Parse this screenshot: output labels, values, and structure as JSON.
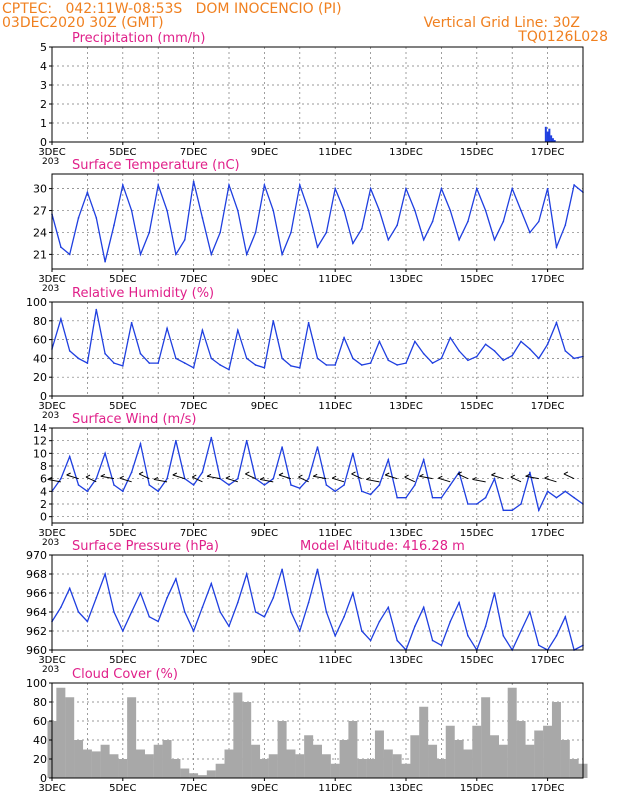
{
  "header": {
    "line1": "CPTEC:   042:11W-08:53S   DOM INOCENCIO (PI)",
    "line2": "03DEC2020 30Z (GMT)",
    "grid_note": "Vertical Grid Line: 30Z",
    "code": "TQ0126L028",
    "color": "#f08020"
  },
  "colors": {
    "title": "#e0208a",
    "line": "#1f3fe0",
    "cloud": "#a8a8a8",
    "frame": "#000000"
  },
  "x_axis": {
    "labels": [
      "3DEC",
      "5DEC",
      "7DEC",
      "9DEC",
      "11DEC",
      "13DEC",
      "15DEC",
      "17DEC"
    ],
    "overlap_label": "203"
  },
  "chart_data": [
    {
      "type": "bar",
      "title": "Precipitation (mm/h)",
      "ylim": [
        0,
        5
      ],
      "yticks": [
        0,
        1,
        2,
        3,
        4,
        5
      ],
      "x": [
        16.95,
        17.0,
        17.05,
        17.1,
        17.15,
        17.2
      ],
      "values": [
        0.8,
        0.55,
        0.7,
        0.35,
        0.2,
        0.1
      ]
    },
    {
      "type": "line",
      "title": "Surface Temperature (nC)",
      "ylim": [
        19,
        32
      ],
      "yticks": [
        21,
        24,
        27,
        30
      ],
      "x": [
        3.0,
        3.25,
        3.5,
        3.75,
        4.0,
        4.25,
        4.5,
        4.75,
        5.0,
        5.25,
        5.5,
        5.75,
        6.0,
        6.25,
        6.5,
        6.75,
        7.0,
        7.25,
        7.5,
        7.75,
        8.0,
        8.25,
        8.5,
        8.75,
        9.0,
        9.25,
        9.5,
        9.75,
        10.0,
        10.25,
        10.5,
        10.75,
        11.0,
        11.25,
        11.5,
        11.75,
        12.0,
        12.25,
        12.5,
        12.75,
        13.0,
        13.25,
        13.5,
        13.75,
        14.0,
        14.25,
        14.5,
        14.75,
        15.0,
        15.25,
        15.5,
        15.75,
        16.0,
        16.25,
        16.5,
        16.75,
        17.0,
        17.25,
        17.5,
        17.75,
        18.0
      ],
      "y": [
        26.5,
        22,
        21,
        26,
        29.5,
        26,
        20,
        25,
        30.5,
        27,
        21,
        24,
        30.5,
        27,
        21,
        23,
        31,
        26,
        21,
        24,
        30.5,
        27,
        21,
        24,
        30.5,
        27,
        21,
        24,
        30.5,
        27,
        22,
        24,
        30,
        27,
        22.5,
        24.5,
        30,
        27,
        23,
        25,
        30,
        27,
        23,
        25.5,
        30,
        27,
        23,
        25.5,
        30,
        27,
        23,
        25.5,
        30,
        27,
        24,
        25.5,
        30,
        22,
        25,
        30.5,
        29.5
      ]
    },
    {
      "type": "line",
      "title": "Relative Humidity (%)",
      "ylim": [
        0,
        100
      ],
      "yticks": [
        0,
        20,
        40,
        60,
        80,
        100
      ],
      "x": [
        3.0,
        3.25,
        3.5,
        3.75,
        4.0,
        4.25,
        4.5,
        4.75,
        5.0,
        5.25,
        5.5,
        5.75,
        6.0,
        6.25,
        6.5,
        6.75,
        7.0,
        7.25,
        7.5,
        7.75,
        8.0,
        8.25,
        8.5,
        8.75,
        9.0,
        9.25,
        9.5,
        9.75,
        10.0,
        10.25,
        10.5,
        10.75,
        11.0,
        11.25,
        11.5,
        11.75,
        12.0,
        12.25,
        12.5,
        12.75,
        13.0,
        13.25,
        13.5,
        13.75,
        14.0,
        14.25,
        14.5,
        14.75,
        15.0,
        15.25,
        15.5,
        15.75,
        16.0,
        16.25,
        16.5,
        16.75,
        17.0,
        17.25,
        17.5,
        17.75,
        18.0
      ],
      "y": [
        50,
        82,
        48,
        40,
        35,
        92,
        45,
        35,
        32,
        78,
        45,
        35,
        35,
        72,
        40,
        35,
        30,
        70,
        40,
        33,
        28,
        70,
        40,
        33,
        30,
        80,
        40,
        32,
        30,
        78,
        40,
        33,
        33,
        62,
        40,
        33,
        35,
        58,
        38,
        33,
        35,
        58,
        45,
        35,
        40,
        62,
        48,
        38,
        42,
        55,
        48,
        38,
        43,
        58,
        50,
        40,
        55,
        78,
        48,
        40,
        42
      ]
    },
    {
      "type": "line",
      "title": "Surface Wind (m/s)",
      "ylim": [
        -1,
        14
      ],
      "yticks": [
        0,
        2,
        4,
        6,
        8,
        10,
        12,
        14
      ],
      "x": [
        3.0,
        3.25,
        3.5,
        3.75,
        4.0,
        4.25,
        4.5,
        4.75,
        5.0,
        5.25,
        5.5,
        5.75,
        6.0,
        6.25,
        6.5,
        6.75,
        7.0,
        7.25,
        7.5,
        7.75,
        8.0,
        8.25,
        8.5,
        8.75,
        9.0,
        9.25,
        9.5,
        9.75,
        10.0,
        10.25,
        10.5,
        10.75,
        11.0,
        11.25,
        11.5,
        11.75,
        12.0,
        12.25,
        12.5,
        12.75,
        13.0,
        13.25,
        13.5,
        13.75,
        14.0,
        14.25,
        14.5,
        14.75,
        15.0,
        15.25,
        15.5,
        15.75,
        16.0,
        16.25,
        16.5,
        16.75,
        17.0,
        17.25,
        17.5,
        17.75,
        18.0
      ],
      "y": [
        4,
        6,
        9.5,
        5,
        4,
        6,
        10,
        5,
        4,
        7,
        11.5,
        5,
        4,
        6,
        12,
        6,
        5,
        7,
        12.5,
        6,
        5,
        6,
        12,
        6,
        5,
        6,
        11,
        5,
        4.5,
        6,
        11,
        5,
        4,
        5,
        10,
        4,
        3.5,
        5,
        9,
        3,
        3,
        5,
        9,
        3,
        3,
        5,
        7,
        2,
        2,
        3,
        6,
        1,
        1,
        2,
        7,
        1,
        4,
        3,
        4,
        3,
        2
      ]
    },
    {
      "type": "line",
      "title": "Surface Pressure (hPa)",
      "annotation": "Model Altitude: 416.28 m",
      "ylim": [
        960,
        970
      ],
      "yticks": [
        960,
        962,
        964,
        966,
        968,
        970
      ],
      "x": [
        3.0,
        3.25,
        3.5,
        3.75,
        4.0,
        4.25,
        4.5,
        4.75,
        5.0,
        5.25,
        5.5,
        5.75,
        6.0,
        6.25,
        6.5,
        6.75,
        7.0,
        7.25,
        7.5,
        7.75,
        8.0,
        8.25,
        8.5,
        8.75,
        9.0,
        9.25,
        9.5,
        9.75,
        10.0,
        10.25,
        10.5,
        10.75,
        11.0,
        11.25,
        11.5,
        11.75,
        12.0,
        12.25,
        12.5,
        12.75,
        13.0,
        13.25,
        13.5,
        13.75,
        14.0,
        14.25,
        14.5,
        14.75,
        15.0,
        15.25,
        15.5,
        15.75,
        16.0,
        16.25,
        16.5,
        16.75,
        17.0,
        17.25,
        17.5,
        17.75,
        18.0
      ],
      "y": [
        963,
        964.5,
        966.5,
        964,
        963,
        965.5,
        968,
        964,
        962,
        964,
        966,
        963.5,
        963,
        965.5,
        967.5,
        964,
        962,
        964.5,
        967,
        964,
        962.5,
        965,
        968,
        964,
        963.5,
        965.5,
        968.5,
        964,
        962,
        965,
        968.5,
        964,
        961.5,
        963.5,
        966,
        962,
        961,
        963,
        964.5,
        961,
        960,
        962.5,
        964.5,
        961,
        960.5,
        963,
        965,
        961.5,
        960,
        962.5,
        966,
        961.5,
        960,
        962,
        964,
        960.5,
        960,
        961.5,
        963.5,
        960,
        960.5
      ]
    },
    {
      "type": "bar",
      "title": "Cloud Cover (%)",
      "ylim": [
        0,
        100
      ],
      "yticks": [
        0,
        20,
        40,
        60,
        80,
        100
      ],
      "x": [
        3.0,
        3.25,
        3.5,
        3.75,
        4.0,
        4.25,
        4.5,
        4.75,
        5.0,
        5.25,
        5.5,
        5.75,
        6.0,
        6.25,
        6.5,
        6.75,
        7.0,
        7.25,
        7.5,
        7.75,
        8.0,
        8.25,
        8.5,
        8.75,
        9.0,
        9.25,
        9.5,
        9.75,
        10.0,
        10.25,
        10.5,
        10.75,
        11.0,
        11.25,
        11.5,
        11.75,
        12.0,
        12.25,
        12.5,
        12.75,
        13.0,
        13.25,
        13.5,
        13.75,
        14.0,
        14.25,
        14.5,
        14.75,
        15.0,
        15.25,
        15.5,
        15.75,
        16.0,
        16.25,
        16.5,
        16.75,
        17.0,
        17.25,
        17.5,
        17.75,
        18.0
      ],
      "values": [
        60,
        95,
        85,
        40,
        30,
        28,
        35,
        25,
        20,
        85,
        30,
        25,
        35,
        40,
        20,
        10,
        5,
        3,
        8,
        15,
        30,
        90,
        80,
        35,
        20,
        25,
        60,
        30,
        25,
        45,
        35,
        25,
        15,
        40,
        60,
        20,
        20,
        50,
        30,
        25,
        15,
        45,
        75,
        35,
        20,
        55,
        40,
        30,
        55,
        85,
        45,
        35,
        95,
        60,
        35,
        50,
        55,
        80,
        40,
        20,
        15
      ]
    }
  ]
}
